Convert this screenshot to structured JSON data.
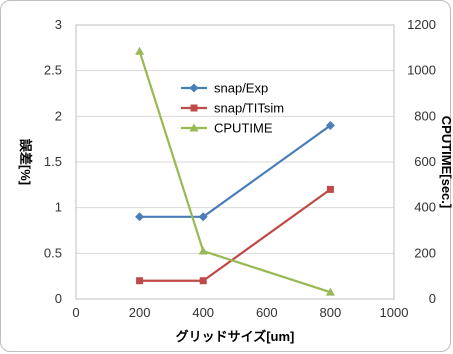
{
  "chart_data": {
    "type": "line",
    "title": "",
    "xlabel": "グリッドサイズ[um]",
    "ylabel_left": "誤差[%]",
    "ylabel_right": "CPUTIME[sec.]",
    "xlim": [
      0,
      1000
    ],
    "ylim_left": [
      0,
      3
    ],
    "ylim_right": [
      0,
      1200
    ],
    "x_ticks": [
      "0",
      "200",
      "400",
      "600",
      "800",
      "1000"
    ],
    "y_left_ticks": [
      "0",
      "0.5",
      "1",
      "1.5",
      "2",
      "2.5",
      "3"
    ],
    "y_right_ticks": [
      "0",
      "200",
      "400",
      "600",
      "800",
      "1000",
      "1200"
    ],
    "grid": true,
    "legend_position": "center",
    "series": [
      {
        "name": "snap/Exp",
        "axis": "left",
        "marker": "diamond",
        "color": "#4a7ebb",
        "points": [
          [
            200,
            0.9
          ],
          [
            400,
            0.9
          ],
          [
            800,
            1.9
          ]
        ]
      },
      {
        "name": "snap/TITsim",
        "axis": "left",
        "marker": "square",
        "color": "#be4b48",
        "points": [
          [
            200,
            0.2
          ],
          [
            400,
            0.2
          ],
          [
            800,
            1.2
          ]
        ]
      },
      {
        "name": "CPUTIME",
        "axis": "right",
        "marker": "triangle",
        "color": "#98b954",
        "points": [
          [
            200,
            1085
          ],
          [
            400,
            210
          ],
          [
            800,
            30
          ]
        ]
      }
    ]
  }
}
